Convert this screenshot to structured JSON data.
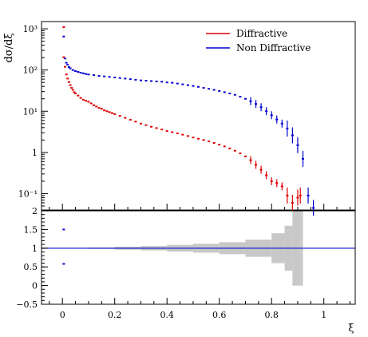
{
  "chart_data": {
    "type": "scatter",
    "ylabel": "dσ/dξ",
    "xlabel": "ξ",
    "top_panel": {
      "yscale": "log",
      "ylim": [
        0.04,
        1500
      ],
      "yticks": [
        {
          "value": 1000,
          "label": "10³"
        },
        {
          "value": 100,
          "label": "10²"
        },
        {
          "value": 10,
          "label": "10¹"
        },
        {
          "value": 1,
          "label": "1"
        },
        {
          "value": 0.1,
          "label": "10⁻¹"
        }
      ],
      "legend_position": "top-right",
      "series": [
        {
          "name": "Diffractive",
          "color": "#e00000",
          "points": [
            [
              0.005,
              1100
            ],
            [
              0.005,
              205
            ],
            [
              0.01,
              120
            ],
            [
              0.015,
              78
            ],
            [
              0.02,
              62
            ],
            [
              0.025,
              51
            ],
            [
              0.03,
              43
            ],
            [
              0.035,
              37
            ],
            [
              0.04,
              33
            ],
            [
              0.045,
              29
            ],
            [
              0.05,
              27
            ],
            [
              0.06,
              24
            ],
            [
              0.07,
              21
            ],
            [
              0.08,
              19
            ],
            [
              0.09,
              18
            ],
            [
              0.1,
              17
            ],
            [
              0.11,
              15.5
            ],
            [
              0.12,
              14
            ],
            [
              0.13,
              13
            ],
            [
              0.14,
              12
            ],
            [
              0.15,
              11.5
            ],
            [
              0.16,
              10.5
            ],
            [
              0.17,
              10
            ],
            [
              0.18,
              9.5
            ],
            [
              0.19,
              9
            ],
            [
              0.2,
              8.5
            ],
            [
              0.22,
              7.7
            ],
            [
              0.24,
              6.9
            ],
            [
              0.26,
              6.2
            ],
            [
              0.28,
              5.6
            ],
            [
              0.3,
              5.0
            ],
            [
              0.32,
              4.6
            ],
            [
              0.34,
              4.2
            ],
            [
              0.36,
              3.9
            ],
            [
              0.38,
              3.6
            ],
            [
              0.4,
              3.3
            ],
            [
              0.42,
              3.1
            ],
            [
              0.44,
              2.9
            ],
            [
              0.46,
              2.7
            ],
            [
              0.48,
              2.5
            ],
            [
              0.5,
              2.3
            ],
            [
              0.52,
              2.15
            ],
            [
              0.54,
              2.0
            ],
            [
              0.56,
              1.85
            ],
            [
              0.58,
              1.7
            ],
            [
              0.6,
              1.55
            ],
            [
              0.62,
              1.4
            ],
            [
              0.64,
              1.25
            ],
            [
              0.66,
              1.1
            ],
            [
              0.68,
              0.95
            ],
            [
              0.7,
              0.8
            ],
            [
              0.72,
              0.65
            ],
            [
              0.74,
              0.5
            ],
            [
              0.76,
              0.38
            ],
            [
              0.78,
              0.28
            ],
            [
              0.8,
              0.2
            ],
            [
              0.82,
              0.18
            ],
            [
              0.84,
              0.15
            ],
            [
              0.86,
              0.09
            ],
            [
              0.88,
              0.06
            ],
            [
              0.9,
              0.08
            ],
            [
              0.91,
              0.09
            ]
          ]
        },
        {
          "name": "Non Diffractive",
          "color": "#0000d0",
          "points": [
            [
              0.005,
              650
            ],
            [
              0.01,
              190
            ],
            [
              0.015,
              150
            ],
            [
              0.02,
              135
            ],
            [
              0.025,
              118
            ],
            [
              0.03,
              110
            ],
            [
              0.04,
              100
            ],
            [
              0.05,
              94
            ],
            [
              0.06,
              90
            ],
            [
              0.07,
              86
            ],
            [
              0.08,
              83
            ],
            [
              0.09,
              80
            ],
            [
              0.1,
              78
            ],
            [
              0.12,
              75
            ],
            [
              0.14,
              72
            ],
            [
              0.16,
              70
            ],
            [
              0.18,
              68
            ],
            [
              0.2,
              66
            ],
            [
              0.22,
              64
            ],
            [
              0.24,
              62
            ],
            [
              0.26,
              60
            ],
            [
              0.28,
              58
            ],
            [
              0.3,
              56
            ],
            [
              0.32,
              55
            ],
            [
              0.34,
              54
            ],
            [
              0.36,
              53
            ],
            [
              0.38,
              52
            ],
            [
              0.4,
              50
            ],
            [
              0.42,
              49
            ],
            [
              0.44,
              47
            ],
            [
              0.46,
              45
            ],
            [
              0.48,
              43
            ],
            [
              0.5,
              41
            ],
            [
              0.52,
              39
            ],
            [
              0.54,
              37
            ],
            [
              0.56,
              35
            ],
            [
              0.58,
              33
            ],
            [
              0.6,
              31
            ],
            [
              0.62,
              29
            ],
            [
              0.64,
              27
            ],
            [
              0.66,
              25
            ],
            [
              0.68,
              22.5
            ],
            [
              0.7,
              20
            ],
            [
              0.72,
              17.5
            ],
            [
              0.74,
              15
            ],
            [
              0.76,
              12.5
            ],
            [
              0.78,
              10
            ],
            [
              0.8,
              8
            ],
            [
              0.82,
              6.3
            ],
            [
              0.84,
              5
            ],
            [
              0.86,
              3.8
            ],
            [
              0.88,
              2.6
            ],
            [
              0.9,
              1.5
            ],
            [
              0.92,
              0.7
            ],
            [
              0.94,
              0.09
            ],
            [
              0.96,
              0.045
            ]
          ]
        }
      ]
    },
    "ratio_panel": {
      "ylim": [
        -0.5,
        2
      ],
      "yticks": [
        {
          "value": 2,
          "label": "2"
        },
        {
          "value": 1.5,
          "label": "1.5"
        },
        {
          "value": 1,
          "label": "1"
        },
        {
          "value": 0.5,
          "label": "0.5"
        },
        {
          "value": 0,
          "label": "0"
        },
        {
          "value": -0.5,
          "label": "−0.5"
        }
      ],
      "reference_line": 1,
      "band_color": "#c8c8c8",
      "band_half_width": [
        [
          0.005,
          0.005
        ],
        [
          0.1,
          0.02
        ],
        [
          0.2,
          0.04
        ],
        [
          0.3,
          0.06
        ],
        [
          0.4,
          0.09
        ],
        [
          0.5,
          0.12
        ],
        [
          0.6,
          0.16
        ],
        [
          0.7,
          0.23
        ],
        [
          0.8,
          0.4
        ],
        [
          0.85,
          0.6
        ],
        [
          0.88,
          1.0
        ],
        [
          0.91,
          1.0
        ]
      ],
      "points": [
        [
          0.005,
          1.5
        ],
        [
          0.005,
          0.58
        ]
      ]
    },
    "xlim": [
      -0.08,
      1.12
    ],
    "xticks": [
      {
        "value": 0,
        "label": "0"
      },
      {
        "value": 0.2,
        "label": "0.2"
      },
      {
        "value": 0.4,
        "label": "0.4"
      },
      {
        "value": 0.6,
        "label": "0.6"
      },
      {
        "value": 0.8,
        "label": "0.8"
      },
      {
        "value": 1,
        "label": "1"
      }
    ]
  }
}
